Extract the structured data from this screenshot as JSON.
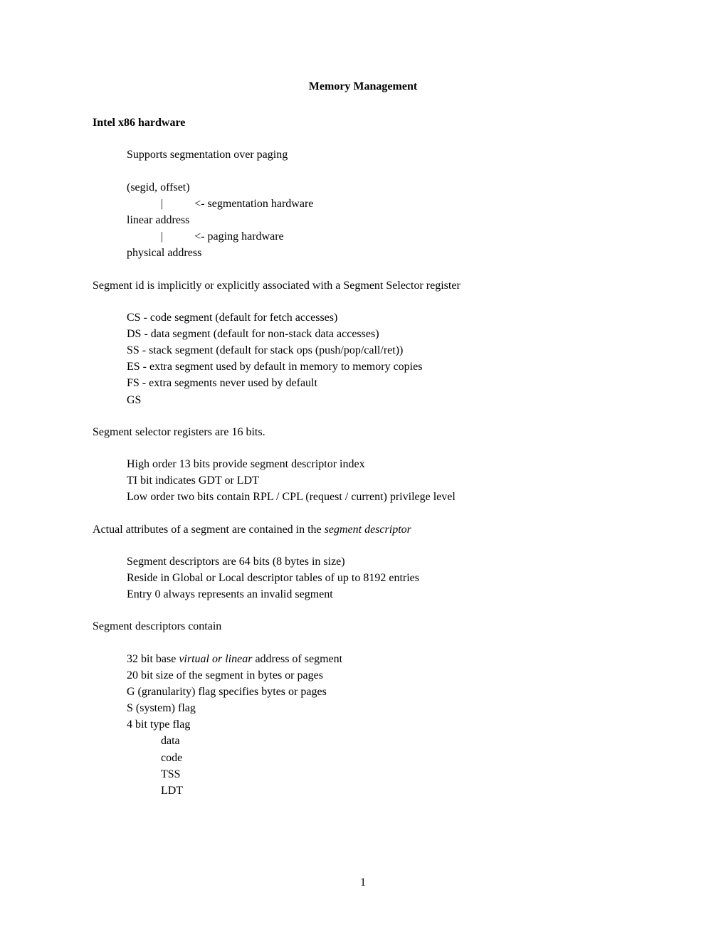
{
  "title": "Memory Management",
  "heading1": "Intel x86 hardware",
  "supports": "Supports segmentation over paging",
  "flow": {
    "l1": "(segid, offset)",
    "l2": "            |           <- segmentation hardware",
    "l3": "linear address",
    "l4": "            |           <- paging hardware",
    "l5": "physical address"
  },
  "segid_assoc": "Segment id is implicitly or explicitly associated with a Segment Selector register",
  "regs": {
    "cs": "CS - code segment (default for fetch accesses)",
    "ds": "DS - data segment (default for non-stack data accesses)",
    "ss": "SS - stack segment (default for stack ops (push/pop/call/ret))",
    "es": "ES - extra segment used by default in memory to memory copies",
    "fs": "FS - extra segments never used by default",
    "gs": "GS"
  },
  "selector_bits": "Segment selector registers are 16 bits.",
  "selector_details": {
    "l1": "High order 13 bits provide segment descriptor index",
    "l2": "TI bit indicates GDT or LDT",
    "l3": "Low order two bits contain RPL / CPL (request / current) privilege level"
  },
  "attrs_prefix": "Actual attributes of a segment are contained in the ",
  "attrs_italic": "segment descriptor",
  "descriptor_info": {
    "l1": "Segment descriptors are 64 bits (8 bytes in size)",
    "l2": "Reside in Global or Local descriptor tables of up to 8192 entries",
    "l3": "Entry 0 always represents an invalid segment"
  },
  "descriptors_contain": "Segment descriptors contain",
  "fields": {
    "base_pre": "32 bit base ",
    "base_italic": "virtual or linear",
    "base_post": " address of segment",
    "size": "20 bit size of the segment in bytes or pages",
    "g": "G  (granularity) flag specifies bytes or pages",
    "s": "S (system) flag",
    "type": "4 bit type flag",
    "type_data": "data",
    "type_code": "code",
    "type_tss": "TSS",
    "type_ldt": "LDT"
  },
  "page_number": "1"
}
